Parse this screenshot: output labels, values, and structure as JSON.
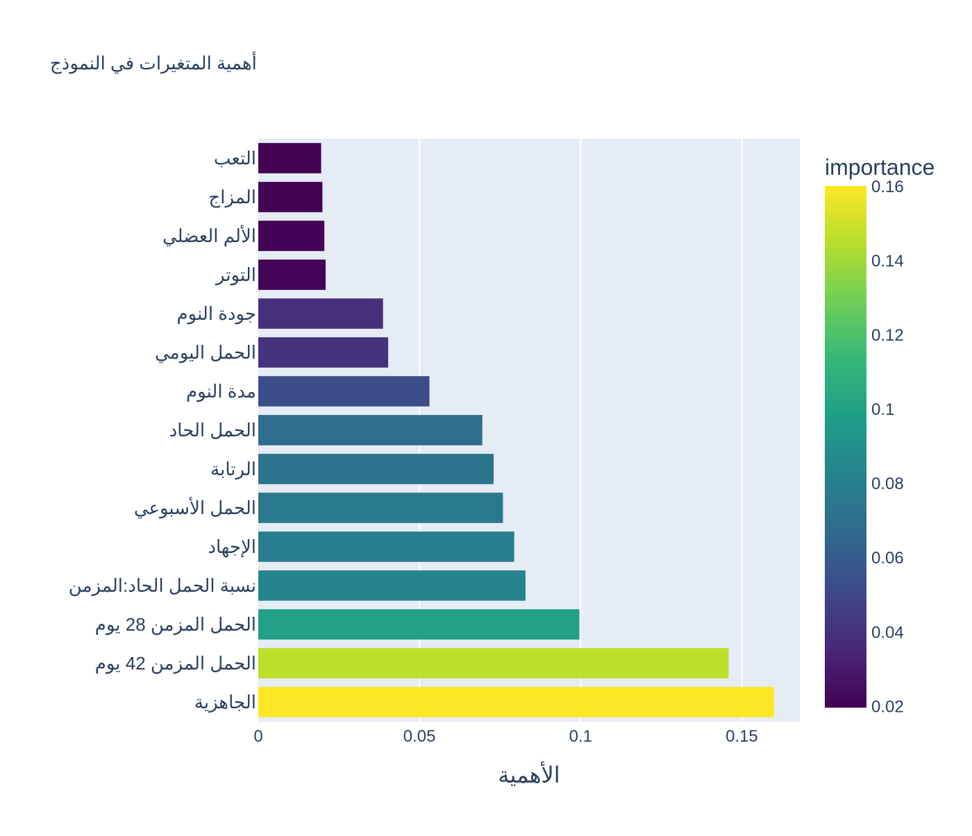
{
  "chart_data": {
    "type": "bar",
    "orientation": "horizontal",
    "title": "أهمية المتغيرات في النموذج",
    "xlabel": "الأهمية",
    "ylabel": "",
    "categories": [
      "التعب",
      "المزاج",
      "الألم العضلي",
      "التوتر",
      "جودة النوم",
      "الحمل اليومي",
      "مدة النوم",
      "الحمل الحاد",
      "الرتابة",
      "الحمل الأسبوعي",
      "الإجهاد",
      "نسبة الحمل الحاد:المزمن",
      "الحمل المزمن 28 يوم",
      "الحمل المزمن 42 يوم",
      "الجاهزية"
    ],
    "values": [
      0.0195,
      0.0199,
      0.0205,
      0.0209,
      0.0387,
      0.0403,
      0.0531,
      0.0695,
      0.073,
      0.0759,
      0.0794,
      0.0829,
      0.0996,
      0.1459,
      0.16
    ],
    "xlim": [
      0,
      0.168
    ],
    "xticks": [
      {
        "value": 0,
        "label": "0"
      },
      {
        "value": 0.05,
        "label": "0.05"
      },
      {
        "value": 0.1,
        "label": "0.1"
      },
      {
        "value": 0.15,
        "label": "0.15"
      }
    ],
    "grid": true,
    "colorbar": {
      "title": "importance",
      "colorscale": "viridis",
      "range": [
        0.0195,
        0.16
      ],
      "ticks": [
        {
          "value": 0.02,
          "label": "0.02"
        },
        {
          "value": 0.04,
          "label": "0.04"
        },
        {
          "value": 0.06,
          "label": "0.06"
        },
        {
          "value": 0.08,
          "label": "0.08"
        },
        {
          "value": 0.1,
          "label": "0.1"
        },
        {
          "value": 0.12,
          "label": "0.12"
        },
        {
          "value": 0.14,
          "label": "0.14"
        },
        {
          "value": 0.16,
          "label": "0.16"
        }
      ]
    }
  },
  "colors": {
    "plot_background": "#e5ecf6",
    "gridline": "#ffffff",
    "text": "#2a3f5f",
    "viridis": [
      "#440154",
      "#482878",
      "#3e4989",
      "#31688e",
      "#26828e",
      "#1f9e89",
      "#35b779",
      "#6ece58",
      "#b5de2b",
      "#fde725"
    ]
  }
}
